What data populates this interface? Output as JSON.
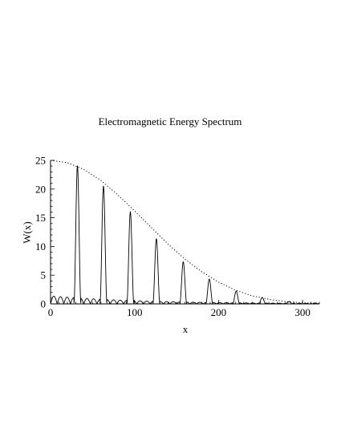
{
  "chart_data": {
    "type": "line",
    "title": "Electromagnetic Energy Spectrum",
    "xlabel": "x",
    "ylabel": "W(x)",
    "xlim": [
      0,
      320
    ],
    "ylim": [
      0,
      25
    ],
    "x_ticks": [
      0,
      100,
      200,
      300
    ],
    "y_ticks": [
      0,
      5,
      10,
      15,
      20,
      25
    ],
    "grid": false,
    "series": [
      {
        "style": "solid",
        "color": "#000000",
        "peaks": [
          {
            "x": 32,
            "y": 24
          },
          {
            "x": 63,
            "y": 20.5
          },
          {
            "x": 95,
            "y": 16
          },
          {
            "x": 126,
            "y": 11.3
          },
          {
            "x": 158,
            "y": 7.3
          },
          {
            "x": 189,
            "y": 4.3
          },
          {
            "x": 221,
            "y": 2.2
          },
          {
            "x": 252,
            "y": 1.1
          },
          {
            "x": 284,
            "y": 0.4
          },
          {
            "x": 315,
            "y": 0.15
          }
        ]
      },
      {
        "style": "dotted",
        "color": "#000000",
        "x": [
          0,
          20,
          40,
          60,
          80,
          100,
          120,
          140,
          160,
          180,
          200,
          220,
          240,
          260,
          280,
          300,
          320
        ],
        "values": [
          25,
          24.6,
          23.4,
          21.5,
          19.0,
          16.2,
          13.3,
          10.4,
          7.8,
          5.6,
          3.8,
          2.4,
          1.4,
          0.8,
          0.4,
          0.2,
          0.1
        ]
      }
    ]
  }
}
